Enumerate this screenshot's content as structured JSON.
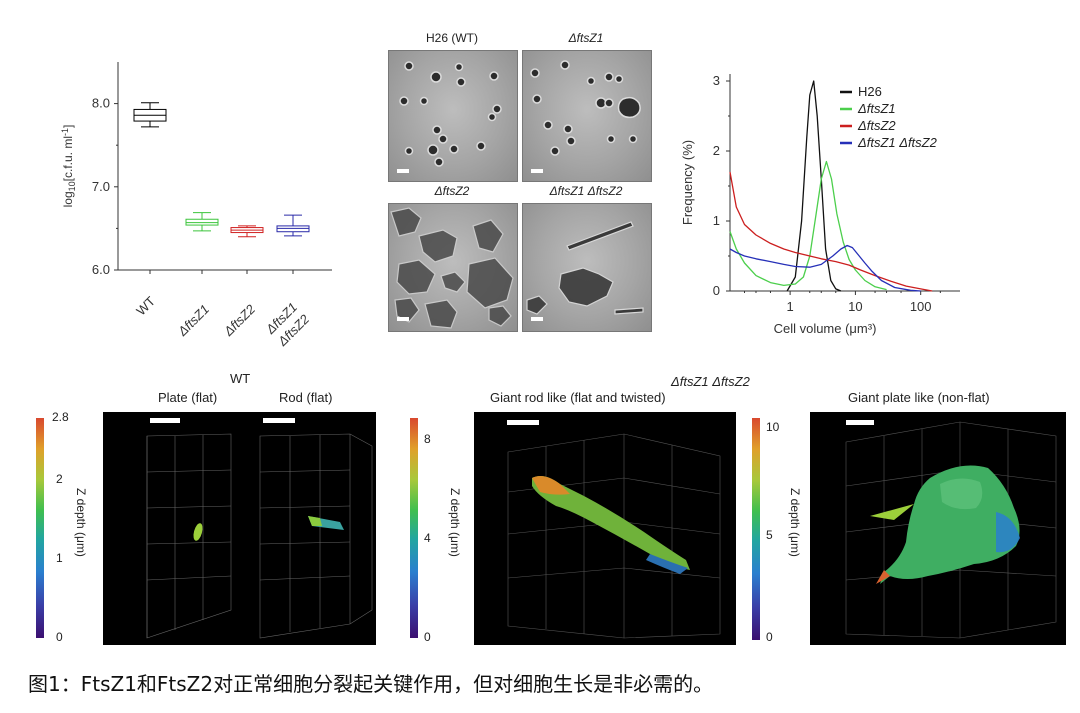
{
  "boxplot": {
    "ylabel": "log10[c.f.u. ml-1]",
    "ylabel_main": "log",
    "ylabel_sub": "10",
    "ylabel_rest": "[c.f.u. ml",
    "ylabel_sup": "-1",
    "ylabel_end": "]",
    "y_ticks": [
      "6.0",
      "7.0",
      "8.0"
    ],
    "groups": [
      {
        "label": "WT",
        "color": "#000000",
        "median": 7.86,
        "q1": 7.79,
        "q3": 7.93,
        "min": 7.72,
        "max": 8.01
      },
      {
        "label": "ΔftsZ1",
        "color": "#3cc43c",
        "median": 6.57,
        "q1": 6.54,
        "q3": 6.61,
        "min": 6.47,
        "max": 6.69
      },
      {
        "label": "ΔftsZ2",
        "color": "#d02020",
        "median": 6.48,
        "q1": 6.45,
        "q3": 6.51,
        "min": 6.4,
        "max": 6.53
      },
      {
        "label": "ΔftsZ1 ΔftsZ2",
        "color": "#2a2aa8",
        "median": 6.5,
        "q1": 6.46,
        "q3": 6.53,
        "min": 6.41,
        "max": 6.66
      }
    ],
    "x_labels": [
      "WT",
      "ΔftsZ1",
      "ΔftsZ2",
      "ΔftsZ1",
      "ΔftsZ2"
    ]
  },
  "micrographs": {
    "labels": [
      "H26 (WT)",
      "ΔftsZ1",
      "ΔftsZ2",
      "ΔftsZ1 ΔftsZ2"
    ]
  },
  "histogram": {
    "ylabel": "Frequency (%)",
    "xlabel": "Cell volume (μm³)",
    "y_ticks": [
      "0",
      "1",
      "2",
      "3"
    ],
    "x_ticks": [
      "1",
      "10",
      "100"
    ],
    "legend": [
      {
        "name": "H26",
        "color": "#111111"
      },
      {
        "name": "ΔftsZ1",
        "color": "#4ccf4c"
      },
      {
        "name": "ΔftsZ2",
        "color": "#cc1f1f"
      },
      {
        "name": "ΔftsZ1 ΔftsZ2",
        "color": "#2630b8"
      }
    ]
  },
  "panels3d": {
    "wt_title": "WT",
    "double_title": "ΔftsZ1 ΔftsZ2",
    "titles": [
      "Plate (flat)",
      "Rod (flat)",
      "Giant rod like (flat and twisted)",
      "Giant plate like (non-flat)"
    ],
    "colorbars": [
      {
        "ticks": [
          "0",
          "1",
          "2",
          "2.8"
        ],
        "title": "Z depth (μm)"
      },
      {
        "ticks": [
          "0",
          "4",
          "8"
        ],
        "title": "Z depth (μm)"
      },
      {
        "ticks": [
          "0",
          "5",
          "10"
        ],
        "title": "Z depth (μm)"
      }
    ]
  },
  "caption": "图1：FtsZ1和FtsZ2对正常细胞分裂起关键作用，但对细胞生长是非必需的。",
  "chart_data": [
    {
      "type": "box",
      "title": "",
      "ylabel": "log10[c.f.u. ml-1]",
      "ylim": [
        6.0,
        8.5
      ],
      "categories": [
        "WT",
        "ΔftsZ1",
        "ΔftsZ2",
        "ΔftsZ1 ΔftsZ2"
      ],
      "series": [
        {
          "name": "WT",
          "min": 7.72,
          "q1": 7.79,
          "median": 7.86,
          "q3": 7.93,
          "max": 8.01
        },
        {
          "name": "ΔftsZ1",
          "min": 6.47,
          "q1": 6.54,
          "median": 6.57,
          "q3": 6.61,
          "max": 6.69
        },
        {
          "name": "ΔftsZ2",
          "min": 6.4,
          "q1": 6.45,
          "median": 6.48,
          "q3": 6.51,
          "max": 6.53
        },
        {
          "name": "ΔftsZ1 ΔftsZ2",
          "min": 6.41,
          "q1": 6.46,
          "median": 6.5,
          "q3": 6.53,
          "max": 6.66
        }
      ]
    },
    {
      "type": "line",
      "title": "",
      "xlabel": "Cell volume (μm³)",
      "ylabel": "Frequency (%)",
      "xscale": "log",
      "xlim": [
        0.12,
        400
      ],
      "ylim": [
        0,
        3.1
      ],
      "legend": "top-right",
      "series": [
        {
          "name": "H26",
          "color": "#111111",
          "x": [
            0.9,
            1.2,
            1.5,
            1.8,
            2.0,
            2.3,
            2.6,
            3.0,
            3.5,
            4.2,
            5.0,
            6.0
          ],
          "y": [
            0.0,
            0.2,
            1.0,
            2.2,
            2.8,
            3.0,
            2.5,
            1.6,
            0.6,
            0.15,
            0.03,
            0.0
          ]
        },
        {
          "name": "ΔftsZ1",
          "color": "#4ccf4c",
          "x": [
            0.12,
            0.15,
            0.2,
            0.3,
            0.5,
            0.8,
            1.2,
            1.6,
            2.0,
            2.5,
            3.0,
            3.6,
            4.3,
            5.2,
            6.5,
            8.0,
            10,
            14,
            20,
            30
          ],
          "y": [
            0.85,
            0.6,
            0.4,
            0.22,
            0.12,
            0.08,
            0.1,
            0.2,
            0.5,
            1.1,
            1.6,
            1.85,
            1.6,
            1.1,
            0.7,
            0.45,
            0.3,
            0.15,
            0.06,
            0.02
          ]
        },
        {
          "name": "ΔftsZ2",
          "color": "#cc1f1f",
          "x": [
            0.12,
            0.15,
            0.2,
            0.3,
            0.5,
            0.8,
            1.2,
            2.0,
            3.0,
            5.0,
            8.0,
            12,
            20,
            35,
            60,
            100,
            150
          ],
          "y": [
            1.7,
            1.2,
            0.95,
            0.8,
            0.68,
            0.6,
            0.55,
            0.5,
            0.46,
            0.42,
            0.37,
            0.3,
            0.22,
            0.14,
            0.07,
            0.03,
            0.0
          ]
        },
        {
          "name": "ΔftsZ1 ΔftsZ2",
          "color": "#2630b8",
          "x": [
            0.12,
            0.15,
            0.2,
            0.3,
            0.5,
            0.8,
            1.2,
            2.0,
            3.0,
            4.5,
            6.0,
            7.5,
            9.0,
            11,
            14,
            18,
            25,
            40,
            70,
            100
          ],
          "y": [
            0.6,
            0.55,
            0.5,
            0.46,
            0.42,
            0.38,
            0.35,
            0.34,
            0.38,
            0.5,
            0.6,
            0.65,
            0.62,
            0.52,
            0.4,
            0.28,
            0.15,
            0.05,
            0.01,
            0.0
          ]
        }
      ]
    }
  ]
}
